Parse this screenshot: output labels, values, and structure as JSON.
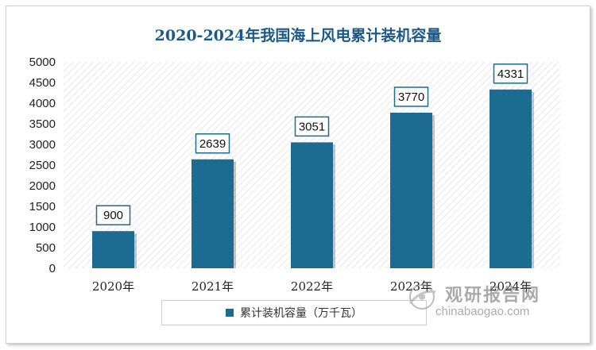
{
  "chart_data": {
    "type": "bar",
    "title": "2020-2024年我国海上风电累计装机容量",
    "categories": [
      "2020年",
      "2021年",
      "2022年",
      "2023年",
      "2024年"
    ],
    "series": [
      {
        "name": "累计装机容量（万千瓦）",
        "values": [
          900,
          2639,
          3051,
          3770,
          4331
        ]
      }
    ],
    "yticks": [
      0,
      500,
      1000,
      1500,
      2000,
      2500,
      3000,
      3500,
      4000,
      4500,
      5000
    ],
    "ylim": [
      0,
      5000
    ],
    "legend_position": "bottom",
    "bar_color": "#1b6c90",
    "grid": false
  },
  "watermark": {
    "cn": "观研报告网",
    "en": "chinabaogao.com"
  }
}
